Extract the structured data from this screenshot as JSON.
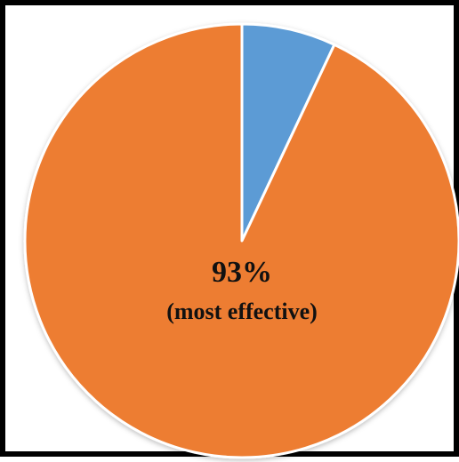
{
  "chart_data": {
    "type": "pie",
    "slices": [
      {
        "value": 7,
        "color": "#5B9BD5"
      },
      {
        "value": 93,
        "color": "#ED7D31"
      }
    ],
    "data_labels": {
      "value_text": "93%",
      "note_text": "(most effective)"
    },
    "legend": "none"
  }
}
